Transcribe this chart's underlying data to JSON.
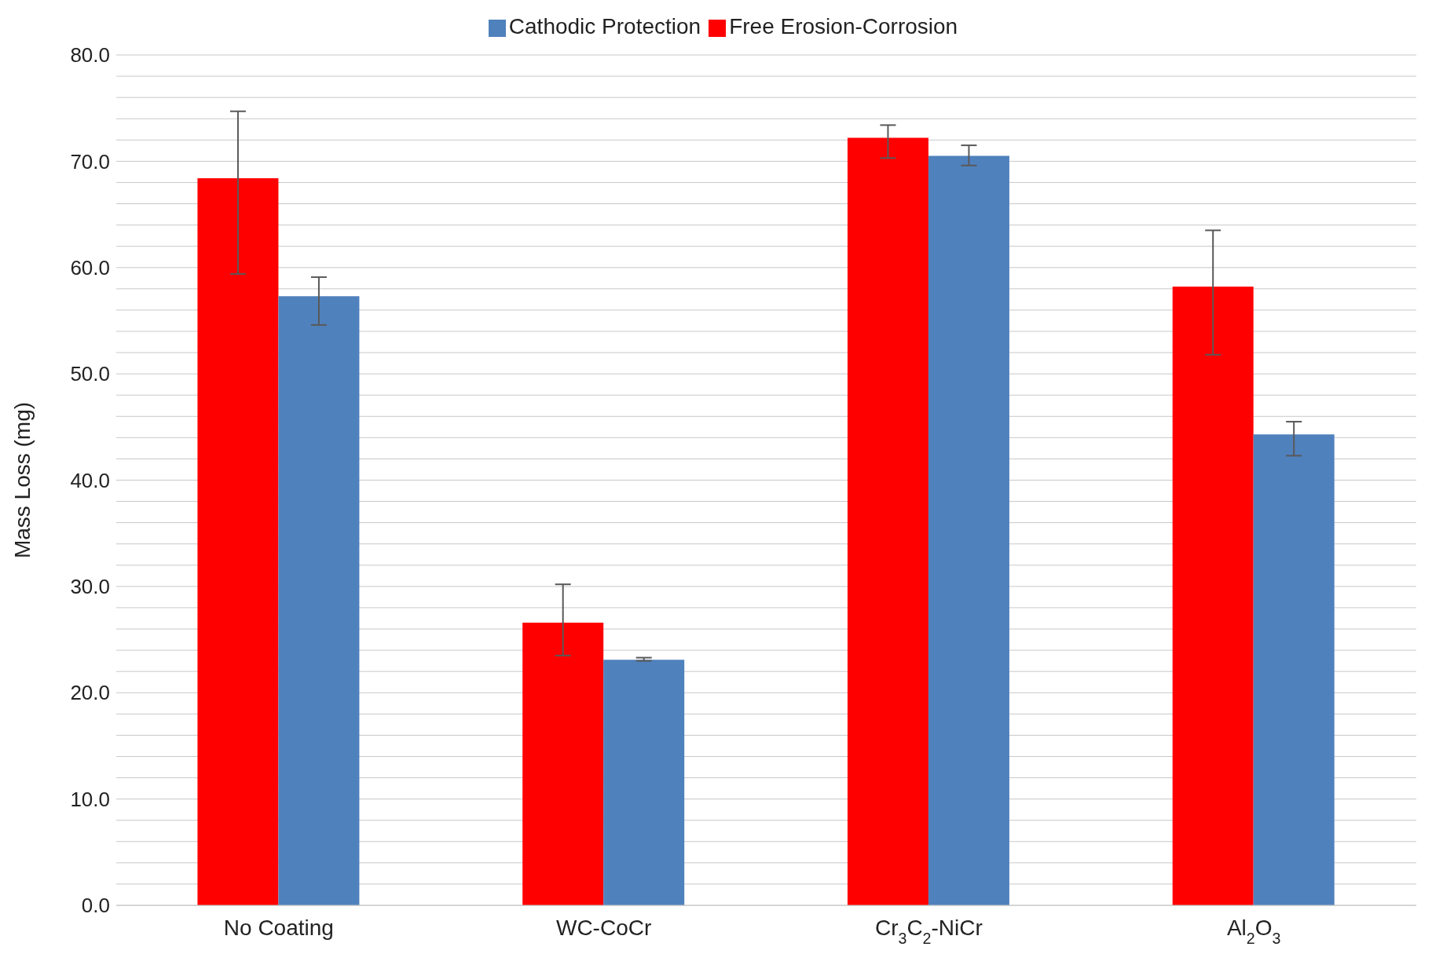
{
  "chart_data": {
    "type": "bar",
    "ylabel": "Mass Loss (mg)",
    "categories": [
      "No Coating",
      "WC-CoCr",
      "Cr$_{3}$C$_{2}$-NiCr",
      "Al$_{2}$O$_{3}$"
    ],
    "series": [
      {
        "name": "Free Erosion-Corrosion",
        "color": "#ff0000",
        "values": [
          68.4,
          26.6,
          72.2,
          58.2
        ],
        "errors": [
          [
            59.4,
            74.7
          ],
          [
            23.5,
            30.2
          ],
          [
            70.3,
            73.4
          ],
          [
            51.8,
            63.5
          ]
        ]
      },
      {
        "name": "Cathodic Protection",
        "color": "#4f81bd",
        "values": [
          57.3,
          23.1,
          70.5,
          44.3
        ],
        "errors": [
          [
            54.6,
            59.1
          ],
          [
            23.0,
            23.3
          ],
          [
            69.6,
            71.5
          ],
          [
            42.3,
            45.5
          ]
        ]
      }
    ],
    "ylim": [
      0,
      80
    ],
    "yticks": [
      {
        "value": 0,
        "label": "0.0"
      },
      {
        "value": 2,
        "label": null
      },
      {
        "value": 4,
        "label": null
      },
      {
        "value": 6,
        "label": null
      },
      {
        "value": 8,
        "label": null
      },
      {
        "value": 10,
        "label": "10.0"
      },
      {
        "value": 12,
        "label": null
      },
      {
        "value": 14,
        "label": null
      },
      {
        "value": 16,
        "label": null
      },
      {
        "value": 18,
        "label": null
      },
      {
        "value": 20,
        "label": "20.0"
      },
      {
        "value": 22,
        "label": null
      },
      {
        "value": 24,
        "label": null
      },
      {
        "value": 26,
        "label": null
      },
      {
        "value": 28,
        "label": null
      },
      {
        "value": 30,
        "label": "30.0"
      },
      {
        "value": 32,
        "label": null
      },
      {
        "value": 34,
        "label": null
      },
      {
        "value": 36,
        "label": null
      },
      {
        "value": 38,
        "label": null
      },
      {
        "value": 40,
        "label": "40.0"
      },
      {
        "value": 42,
        "label": null
      },
      {
        "value": 44,
        "label": null
      },
      {
        "value": 46,
        "label": null
      },
      {
        "value": 48,
        "label": null
      },
      {
        "value": 50,
        "label": "50.0"
      },
      {
        "value": 52,
        "label": null
      },
      {
        "value": 54,
        "label": null
      },
      {
        "value": 56,
        "label": null
      },
      {
        "value": 58,
        "label": null
      },
      {
        "value": 60,
        "label": "60.0"
      },
      {
        "value": 62,
        "label": null
      },
      {
        "value": 64,
        "label": null
      },
      {
        "value": 66,
        "label": null
      },
      {
        "value": 68,
        "label": null
      },
      {
        "value": 70,
        "label": "70.0"
      },
      {
        "value": 72,
        "label": null
      },
      {
        "value": 74,
        "label": null
      },
      {
        "value": 76,
        "label": null
      },
      {
        "value": 78,
        "label": null
      },
      {
        "value": 80,
        "label": "80.0"
      }
    ],
    "grid": "y",
    "legend": "top"
  }
}
